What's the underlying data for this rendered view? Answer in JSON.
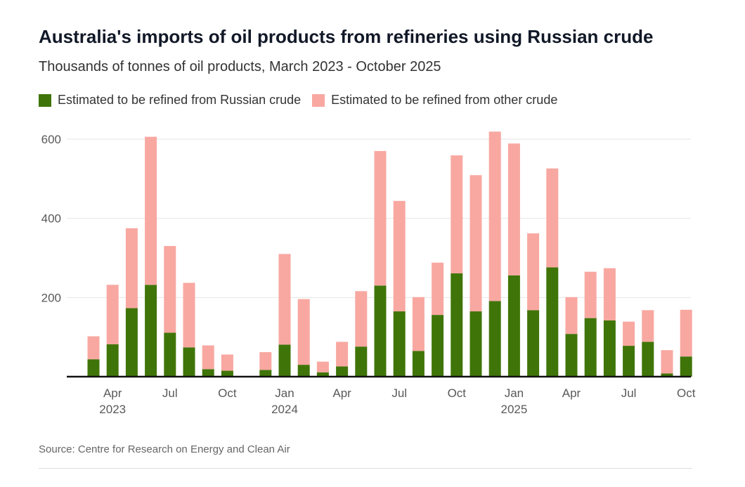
{
  "title": "Australia's imports of oil products from refineries using Russian crude",
  "subtitle": "Thousands of tonnes of oil products, March 2023 - October 2025",
  "legend": {
    "russian": "Estimated to be refined from Russian crude",
    "other": "Estimated to be refined from other crude"
  },
  "colors": {
    "russian": "#3f7508",
    "other": "#f8a8a1",
    "grid": "#e6e6e6",
    "axis": "#111111"
  },
  "source": "Source: Centre for Research on Energy and Clean Air",
  "chart_data": {
    "type": "bar",
    "stacked": true,
    "title": "Australia's imports of oil products from refineries using Russian crude",
    "subtitle": "Thousands of tonnes of oil products, March 2023 - October 2025",
    "categories": [
      "2023-03",
      "2023-04",
      "2023-05",
      "2023-06",
      "2023-07",
      "2023-08",
      "2023-09",
      "2023-10",
      "2023-11",
      "2023-12",
      "2024-01",
      "2024-02",
      "2024-03",
      "2024-04",
      "2024-05",
      "2024-06",
      "2024-07",
      "2024-08",
      "2024-09",
      "2024-10",
      "2024-11",
      "2024-12",
      "2025-01",
      "2025-02",
      "2025-03",
      "2025-04",
      "2025-05",
      "2025-06",
      "2025-07",
      "2025-08",
      "2025-09",
      "2025-10"
    ],
    "series": [
      {
        "name": "Estimated to be refined from Russian crude",
        "values": [
          44,
          82,
          173,
          232,
          111,
          74,
          19,
          15,
          0,
          17,
          81,
          30,
          11,
          26,
          76,
          230,
          165,
          65,
          156,
          261,
          165,
          191,
          256,
          168,
          276,
          108,
          148,
          142,
          78,
          88,
          8,
          51
        ]
      },
      {
        "name": "Estimated to be refined from other crude",
        "values": [
          58,
          150,
          202,
          374,
          219,
          163,
          60,
          41,
          0,
          45,
          229,
          166,
          27,
          62,
          140,
          340,
          279,
          136,
          132,
          298,
          344,
          428,
          333,
          194,
          250,
          93,
          117,
          132,
          61,
          80,
          59,
          118
        ]
      }
    ],
    "x_tick_labels": [
      {
        "month": "Apr",
        "year": "2023",
        "index": 1
      },
      {
        "month": "Jul",
        "year": "",
        "index": 4
      },
      {
        "month": "Oct",
        "year": "",
        "index": 7
      },
      {
        "month": "Jan",
        "year": "2024",
        "index": 10
      },
      {
        "month": "Apr",
        "year": "",
        "index": 13
      },
      {
        "month": "Jul",
        "year": "",
        "index": 16
      },
      {
        "month": "Oct",
        "year": "",
        "index": 19
      },
      {
        "month": "Jan",
        "year": "2025",
        "index": 22
      },
      {
        "month": "Apr",
        "year": "",
        "index": 25
      },
      {
        "month": "Jul",
        "year": "",
        "index": 28
      },
      {
        "month": "Oct",
        "year": "",
        "index": 31
      }
    ],
    "y_ticks": [
      200,
      400,
      600
    ],
    "ylim": [
      0,
      620
    ],
    "grid": true,
    "legend_position": "top-left"
  }
}
